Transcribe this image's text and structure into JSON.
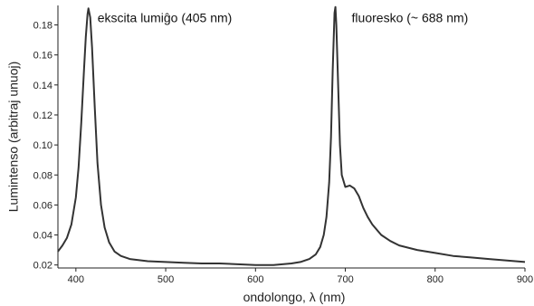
{
  "chart_data": {
    "type": "line",
    "xlabel": "ondolongo, λ (nm)",
    "ylabel": "Lumintenso (arbitraj unuoj)",
    "xlim": [
      380,
      900
    ],
    "ylim": [
      0.018,
      0.193
    ],
    "xticks": [
      400,
      500,
      600,
      700,
      800,
      900
    ],
    "yticks": [
      0.02,
      0.04,
      0.06,
      0.08,
      0.1,
      0.12,
      0.14,
      0.16,
      0.18
    ],
    "xtick_labels": [
      "400",
      "500",
      "600",
      "700",
      "800",
      "900"
    ],
    "ytick_labels": [
      "0.02",
      "0.04",
      "0.06",
      "0.08",
      "0.10",
      "0.12",
      "0.14",
      "0.16",
      "0.18"
    ],
    "grid": false,
    "annotations": [
      {
        "text": "ekscita lumiĝo (405 nm)",
        "x": 414,
        "y": 0.185
      },
      {
        "text": "fluoresko (~ 688 nm)",
        "x": 697,
        "y": 0.185
      }
    ],
    "series": [
      {
        "x": [
          380,
          385,
          390,
          395,
          400,
          403,
          406,
          409,
          411,
          413,
          414,
          416,
          418,
          421,
          424,
          428,
          432,
          437,
          443,
          450,
          460,
          480,
          500,
          520,
          540,
          560,
          580,
          600,
          620,
          640,
          650,
          660,
          667,
          672,
          676,
          679,
          682,
          684,
          686,
          688,
          689,
          690,
          692,
          694,
          696,
          700,
          705,
          710,
          715,
          720,
          725,
          730,
          740,
          750,
          760,
          780,
          800,
          820,
          840,
          860,
          880,
          900
        ],
        "y": [
          0.029,
          0.033,
          0.038,
          0.047,
          0.065,
          0.085,
          0.115,
          0.15,
          0.172,
          0.187,
          0.191,
          0.185,
          0.165,
          0.125,
          0.088,
          0.06,
          0.045,
          0.035,
          0.029,
          0.026,
          0.024,
          0.0225,
          0.022,
          0.0215,
          0.021,
          0.021,
          0.0205,
          0.02,
          0.02,
          0.021,
          0.022,
          0.024,
          0.027,
          0.032,
          0.04,
          0.052,
          0.075,
          0.105,
          0.15,
          0.188,
          0.192,
          0.18,
          0.14,
          0.1,
          0.08,
          0.072,
          0.073,
          0.071,
          0.066,
          0.058,
          0.052,
          0.047,
          0.04,
          0.036,
          0.033,
          0.03,
          0.028,
          0.026,
          0.025,
          0.024,
          0.023,
          0.022
        ]
      }
    ]
  }
}
